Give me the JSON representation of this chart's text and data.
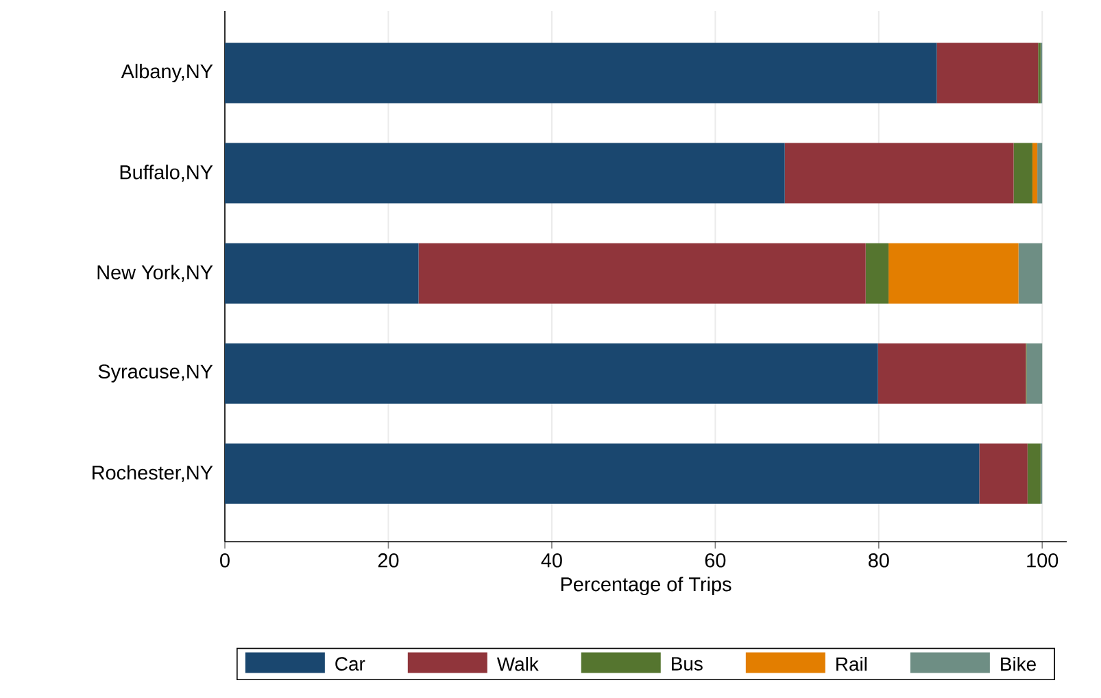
{
  "chart_data": {
    "type": "bar",
    "orientation": "horizontal",
    "stacked": true,
    "xlabel": "Percentage of Trips",
    "categories": [
      "Albany,NY",
      "Buffalo,NY",
      "New York,NY",
      "Syracuse,NY",
      "Rochester,NY"
    ],
    "series": [
      {
        "name": "Car",
        "color": "#1a476f",
        "values": [
          87.1,
          68.5,
          23.7,
          79.9,
          92.3
        ]
      },
      {
        "name": "Walk",
        "color": "#90353b",
        "values": [
          12.4,
          28.0,
          54.7,
          18.1,
          5.9
        ]
      },
      {
        "name": "Bus",
        "color": "#55752f",
        "values": [
          0.3,
          2.3,
          2.8,
          0.1,
          1.6
        ]
      },
      {
        "name": "Rail",
        "color": "#e37e00",
        "values": [
          0,
          0.6,
          15.9,
          0,
          0
        ]
      },
      {
        "name": "Bike",
        "color": "#6e8e84",
        "values": [
          0.2,
          0.6,
          2.9,
          1.9,
          0.2
        ]
      }
    ],
    "xlim": [
      0,
      103
    ],
    "xticks": [
      0,
      20,
      40,
      60,
      80,
      100
    ],
    "grid": "x",
    "legend": "bottom"
  }
}
